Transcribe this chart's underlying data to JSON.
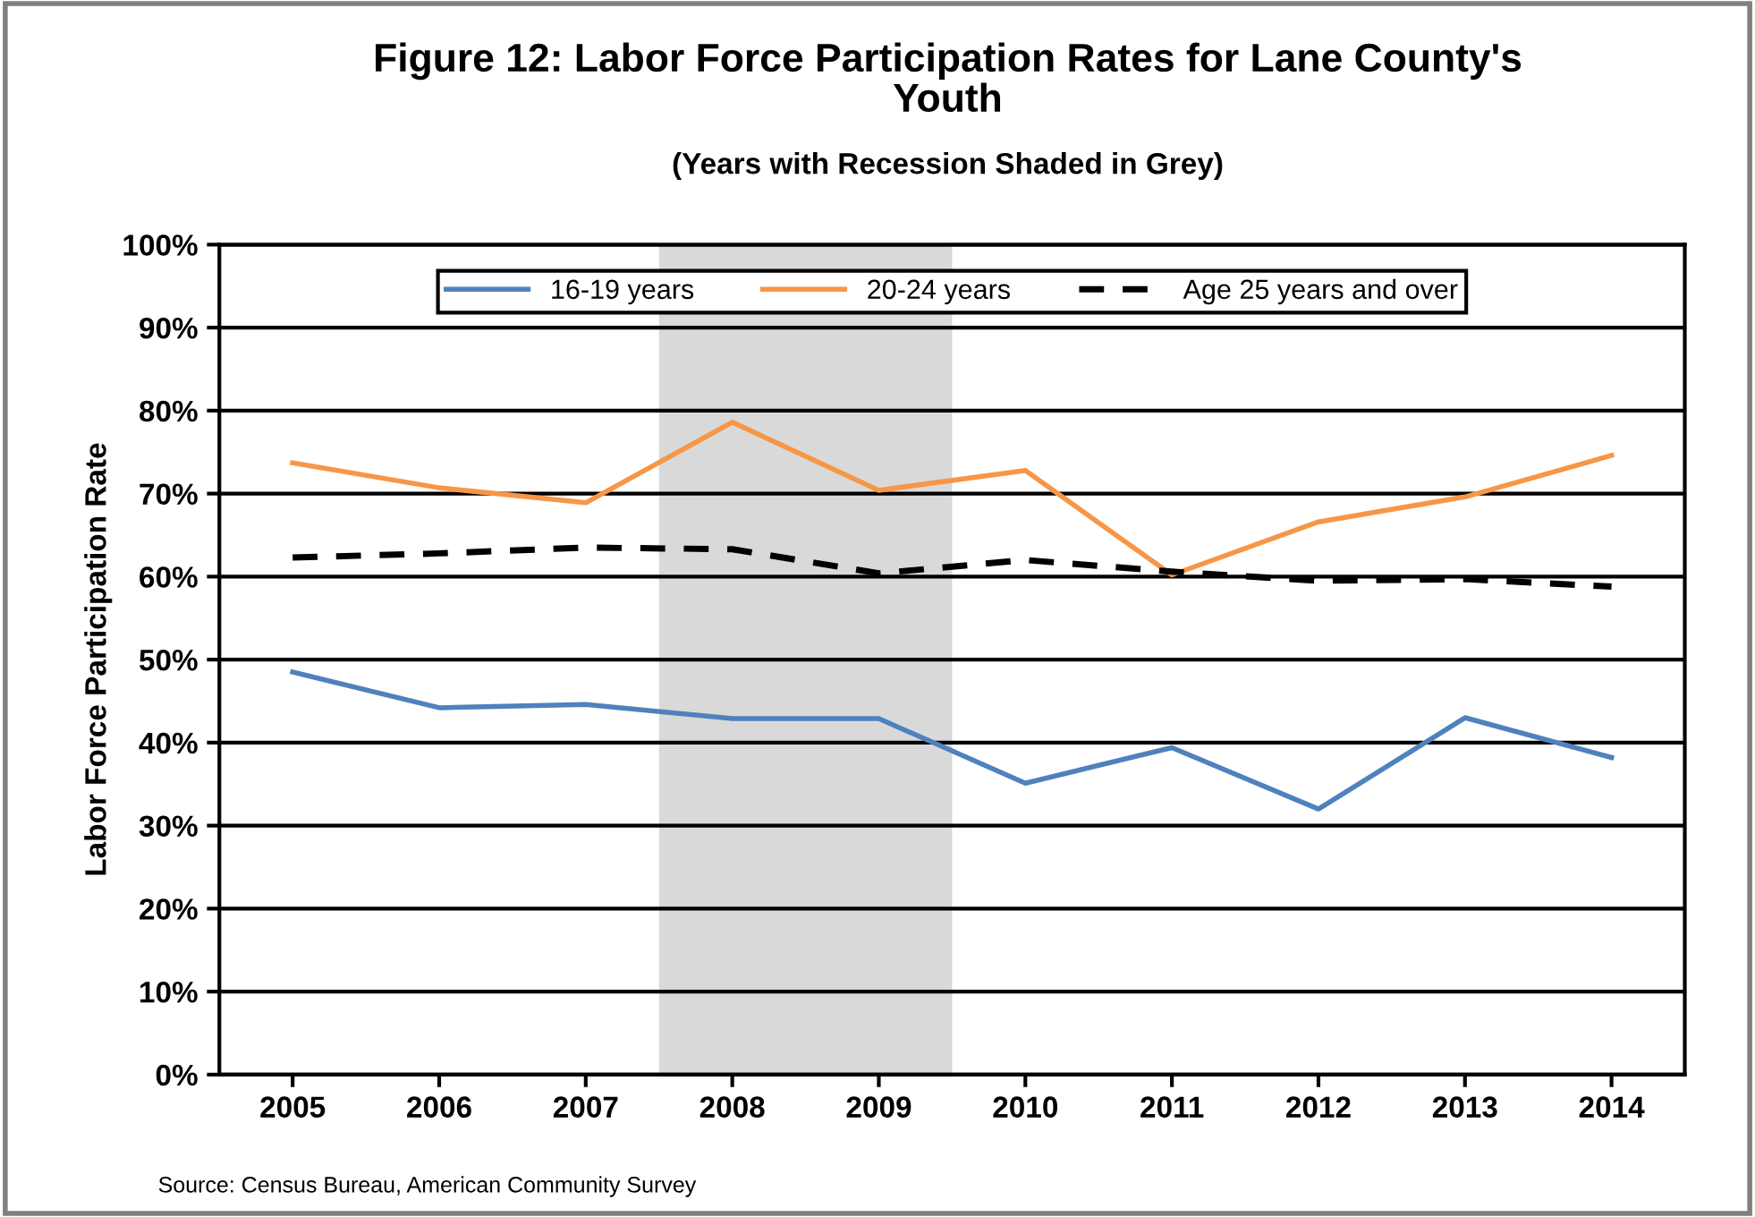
{
  "chart_data": {
    "type": "line",
    "title": "Figure 12: Labor Force Participation Rates for Lane County's\nYouth",
    "subtitle": "(Years with Recession Shaded in Grey)",
    "ylabel": "Labor Force Participation Rate",
    "x": [
      2005,
      2006,
      2007,
      2008,
      2009,
      2010,
      2011,
      2012,
      2013,
      2014
    ],
    "xlim": [
      2004.5,
      2014.5
    ],
    "xticks": [
      2005,
      2006,
      2007,
      2008,
      2009,
      2010,
      2011,
      2012,
      2013,
      2014
    ],
    "ylim": [
      0,
      100
    ],
    "yticks": [
      {
        "value": 0,
        "label": "0%"
      },
      {
        "value": 10,
        "label": "10%"
      },
      {
        "value": 20,
        "label": "20%"
      },
      {
        "value": 30,
        "label": "30%"
      },
      {
        "value": 40,
        "label": "40%"
      },
      {
        "value": 50,
        "label": "50%"
      },
      {
        "value": 60,
        "label": "60%"
      },
      {
        "value": 70,
        "label": "70%"
      },
      {
        "value": 80,
        "label": "80%"
      },
      {
        "value": 90,
        "label": "90%"
      },
      {
        "value": 100,
        "label": "100%"
      }
    ],
    "series": [
      {
        "name": "16-19 years",
        "color": "#4f81bd",
        "line_style": "solid",
        "values": [
          48.5,
          44.2,
          44.6,
          42.9,
          42.9,
          35.1,
          39.4,
          32.0,
          43.0,
          38.2
        ]
      },
      {
        "name": "20-24 years",
        "color": "#f79646",
        "line_style": "solid",
        "values": [
          73.7,
          70.7,
          68.9,
          78.6,
          70.4,
          72.8,
          60.2,
          66.6,
          69.6,
          74.6
        ]
      },
      {
        "name": "Age 25 years and over",
        "color": "#000000",
        "line_style": "dashed",
        "values": [
          62.3,
          62.8,
          63.5,
          63.3,
          60.4,
          62.0,
          60.6,
          59.5,
          59.7,
          58.8
        ]
      }
    ],
    "bands": [
      {
        "axis": "x",
        "from": 2007.5,
        "to": 2009.5,
        "color": "#d9d9d9"
      }
    ],
    "grid": "y",
    "legend": "top",
    "marker": "none",
    "annotations": [
      "Source: Census Bureau, American Community Survey"
    ]
  }
}
